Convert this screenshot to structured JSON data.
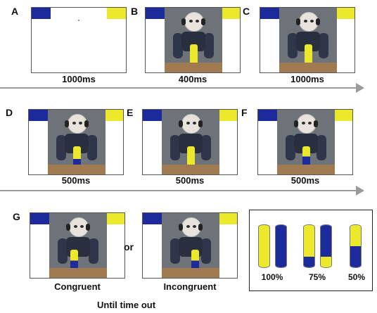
{
  "panels": {
    "a": {
      "label": "A",
      "caption": "1000ms"
    },
    "b": {
      "label": "B",
      "caption": "400ms"
    },
    "c": {
      "label": "C",
      "caption": "1000ms"
    },
    "d": {
      "label": "D",
      "caption": "500ms"
    },
    "e": {
      "label": "E",
      "caption": "500ms"
    },
    "f": {
      "label": "F",
      "caption": "500ms"
    },
    "g": {
      "label": "G",
      "congruent_label": "Congruent",
      "incongruent_label": "Incongruent",
      "or_label": "or",
      "until_label": "Until time out"
    }
  },
  "legend": {
    "items": [
      {
        "label": "100%",
        "yellow_fraction": 1.0
      },
      {
        "label": "75%",
        "yellow_fraction": 0.75
      },
      {
        "label": "50%",
        "yellow_fraction": 0.5
      }
    ]
  },
  "colors": {
    "blue_cue": "#1d2a9c",
    "yellow_cue": "#ece82c",
    "timeline_arrow": "#9a9a9a"
  }
}
